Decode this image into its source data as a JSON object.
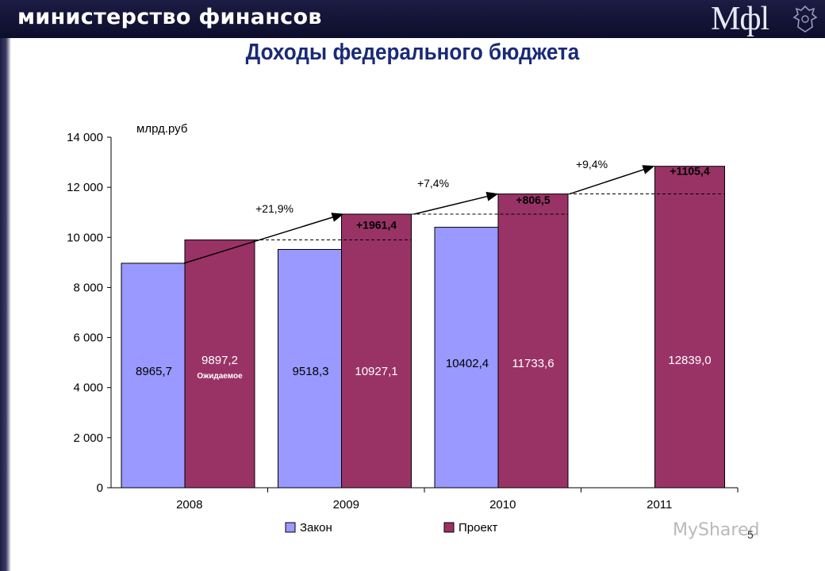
{
  "header": {
    "ministry_name": "министерство финансов",
    "logo_text": "Мфl"
  },
  "page_title": "Доходы федерального бюджета",
  "page_number": "5",
  "watermark": "MyShared",
  "colors": {
    "zakon": "#9999ff",
    "proekt": "#993366",
    "header_bg": "#14143a",
    "title": "#1a2a78"
  },
  "chart_data": {
    "type": "bar",
    "unit_label": "млрд.руб",
    "categories": [
      "2008",
      "2009",
      "2010",
      "2011"
    ],
    "series": [
      {
        "name": "Закон",
        "values": [
          8965.7,
          9518.3,
          10402.4,
          null
        ],
        "labels": [
          "8965,7",
          "9518,3",
          "10402,4",
          ""
        ]
      },
      {
        "name": "Проект",
        "values": [
          9897.2,
          10927.1,
          11733.6,
          12839.0
        ],
        "labels": [
          "9897,2",
          "10927,1",
          "11733,6",
          "12839,0"
        ]
      }
    ],
    "ylim": [
      0,
      14000
    ],
    "yticks": [
      0,
      2000,
      4000,
      6000,
      8000,
      10000,
      12000,
      14000
    ],
    "ytick_labels": [
      "0",
      "2 000",
      "4 000",
      "6 000",
      "8 000",
      "10 000",
      "12 000",
      "14 000"
    ],
    "annotations": {
      "expected_note": "Ожидаемое",
      "increments": [
        "+1961,4",
        "+806,5",
        "+1105,4"
      ],
      "growth": [
        "+21,9%",
        "+7,4%",
        "+9,4%"
      ]
    },
    "legend": {
      "position": "bottom",
      "entries": [
        "Закон",
        "Проект"
      ]
    },
    "grid": false
  }
}
